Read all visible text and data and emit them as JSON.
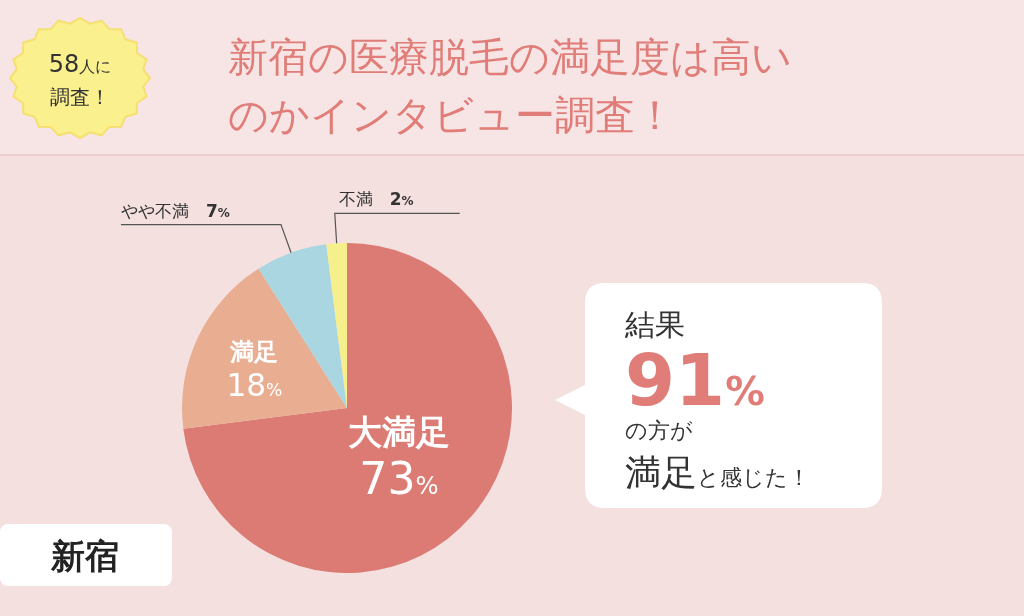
{
  "chart_data": {
    "type": "pie",
    "title": "新宿の医療脱毛の満足度は高いのかインタビュー調査！",
    "categories": [
      "大満足",
      "満足",
      "やや不満",
      "不満"
    ],
    "values": [
      73,
      18,
      7,
      2
    ],
    "value_labels": [
      "73%",
      "18%",
      "7%",
      "2%"
    ],
    "colors": [
      "#db7b74",
      "#e9ae91",
      "#a9d6e0",
      "#f5ef8c"
    ],
    "annotations": [
      "58人に",
      "調査！",
      "結果",
      "91%",
      "の方が",
      "満足と感じた！",
      "新宿"
    ]
  }
}
